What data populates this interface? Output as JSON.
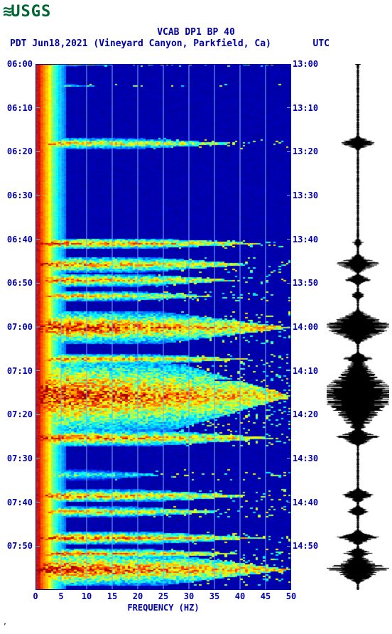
{
  "logo": {
    "wave": "≋",
    "text": "USGS"
  },
  "title": "VCAB DP1 BP 40",
  "subtitle_left": "PDT  Jun18,2021 (Vineyard Canyon, Parkfield, Ca)",
  "subtitle_right": "UTC",
  "x_label": "FREQUENCY (HZ)",
  "colors": {
    "text": "#0000aa",
    "logo": "#006633",
    "seismo": "#000000",
    "grid": "#6ab0ff",
    "border": "#0000aa"
  },
  "spectrogram": {
    "x": {
      "min": 0,
      "max": 50,
      "ticks": [
        0,
        5,
        10,
        15,
        20,
        25,
        30,
        35,
        40,
        45,
        50
      ]
    },
    "y_left": {
      "min_label": "06:00",
      "ticks": [
        "06:00",
        "06:10",
        "06:20",
        "06:30",
        "06:40",
        "06:50",
        "07:00",
        "07:10",
        "07:20",
        "07:30",
        "07:40",
        "07:50"
      ]
    },
    "y_right": {
      "min_label": "13:00",
      "ticks": [
        "13:00",
        "13:10",
        "13:20",
        "13:30",
        "13:40",
        "13:50",
        "14:00",
        "14:10",
        "14:20",
        "14:30",
        "14:40",
        "14:50"
      ]
    },
    "palette": [
      "#000088",
      "#0000cc",
      "#0033ff",
      "#0099ff",
      "#00ffff",
      "#99ff66",
      "#ffff00",
      "#ff9900",
      "#ff3300",
      "#aa0000"
    ],
    "bg": "#0000cc",
    "events": [
      {
        "t": 0.0,
        "w": 0.003,
        "intensity": 0.7,
        "reach": 0.3
      },
      {
        "t": 0.04,
        "w": 0.003,
        "intensity": 0.6,
        "reach": 0.25
      },
      {
        "t": 0.15,
        "w": 0.01,
        "intensity": 0.85,
        "reach": 0.8
      },
      {
        "t": 0.34,
        "w": 0.01,
        "intensity": 0.95,
        "reach": 0.9
      },
      {
        "t": 0.38,
        "w": 0.015,
        "intensity": 0.9,
        "reach": 0.85
      },
      {
        "t": 0.41,
        "w": 0.012,
        "intensity": 0.9,
        "reach": 0.8
      },
      {
        "t": 0.44,
        "w": 0.01,
        "intensity": 0.85,
        "reach": 0.7
      },
      {
        "t": 0.5,
        "w": 0.03,
        "intensity": 1.0,
        "reach": 1.0
      },
      {
        "t": 0.56,
        "w": 0.01,
        "intensity": 0.9,
        "reach": 0.85
      },
      {
        "t": 0.6,
        "w": 0.01,
        "intensity": 0.8,
        "reach": 0.7
      },
      {
        "t": 0.63,
        "w": 0.07,
        "intensity": 1.0,
        "reach": 1.0
      },
      {
        "t": 0.71,
        "w": 0.015,
        "intensity": 0.95,
        "reach": 0.95
      },
      {
        "t": 0.78,
        "w": 0.01,
        "intensity": 0.6,
        "reach": 0.5
      },
      {
        "t": 0.82,
        "w": 0.012,
        "intensity": 0.9,
        "reach": 0.85
      },
      {
        "t": 0.85,
        "w": 0.01,
        "intensity": 0.85,
        "reach": 0.75
      },
      {
        "t": 0.9,
        "w": 0.012,
        "intensity": 0.95,
        "reach": 0.9
      },
      {
        "t": 0.93,
        "w": 0.01,
        "intensity": 0.9,
        "reach": 0.8
      },
      {
        "t": 0.96,
        "w": 0.03,
        "intensity": 1.0,
        "reach": 1.0
      }
    ]
  },
  "seismogram": {
    "baseline_amp": 0.03,
    "events": [
      {
        "t": 0.0,
        "w": 0.003,
        "amp": 0.1
      },
      {
        "t": 0.15,
        "w": 0.015,
        "amp": 0.45
      },
      {
        "t": 0.34,
        "w": 0.01,
        "amp": 0.15
      },
      {
        "t": 0.38,
        "w": 0.02,
        "amp": 0.55
      },
      {
        "t": 0.41,
        "w": 0.012,
        "amp": 0.35
      },
      {
        "t": 0.44,
        "w": 0.01,
        "amp": 0.2
      },
      {
        "t": 0.5,
        "w": 0.035,
        "amp": 0.95
      },
      {
        "t": 0.56,
        "w": 0.012,
        "amp": 0.4
      },
      {
        "t": 0.6,
        "w": 0.01,
        "amp": 0.25
      },
      {
        "t": 0.63,
        "w": 0.08,
        "amp": 1.0
      },
      {
        "t": 0.71,
        "w": 0.018,
        "amp": 0.55
      },
      {
        "t": 0.82,
        "w": 0.015,
        "amp": 0.45
      },
      {
        "t": 0.85,
        "w": 0.012,
        "amp": 0.3
      },
      {
        "t": 0.9,
        "w": 0.015,
        "amp": 0.6
      },
      {
        "t": 0.93,
        "w": 0.012,
        "amp": 0.35
      },
      {
        "t": 0.96,
        "w": 0.03,
        "amp": 0.8
      }
    ]
  }
}
